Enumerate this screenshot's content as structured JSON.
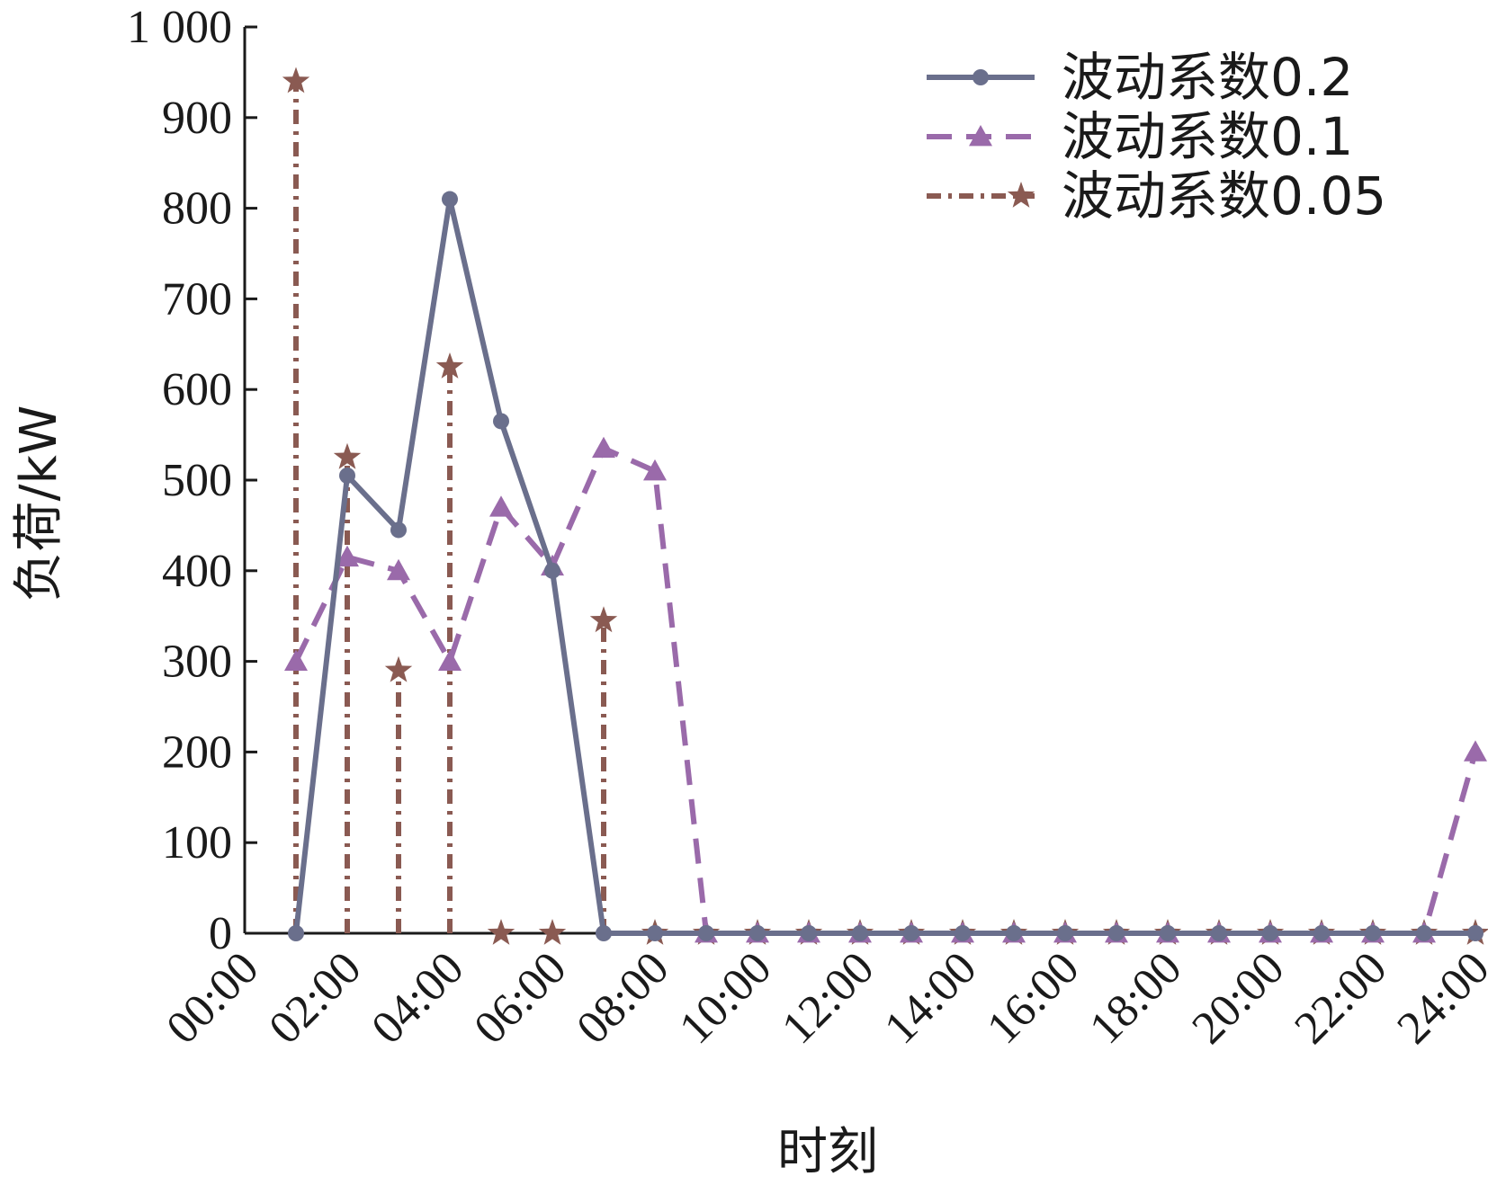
{
  "chart_data": {
    "type": "line",
    "xlabel": "时刻",
    "ylabel": "负荷/kW",
    "ylim": [
      0,
      1000
    ],
    "yticks": [
      0,
      100,
      200,
      300,
      400,
      500,
      600,
      700,
      800,
      900,
      1000
    ],
    "ytick_labels": [
      "0",
      "100",
      "200",
      "300",
      "400",
      "500",
      "600",
      "700",
      "800",
      "900",
      "1 000"
    ],
    "xlim": [
      0,
      24
    ],
    "xtick_labels": [
      "00:00",
      "02:00",
      "04:00",
      "06:00",
      "08:00",
      "10:00",
      "12:00",
      "14:00",
      "16:00",
      "18:00",
      "20:00",
      "22:00",
      "24:00"
    ],
    "grid": false,
    "legend": "top-right",
    "x": [
      1,
      2,
      3,
      4,
      5,
      6,
      7,
      8,
      9,
      10,
      11,
      12,
      13,
      14,
      15,
      16,
      17,
      18,
      19,
      20,
      21,
      22,
      23,
      24
    ],
    "series": [
      {
        "name": "波动系数0.2",
        "color": "#6a6f8c",
        "style": "solid",
        "marker": "circle",
        "values": [
          0,
          505,
          445,
          810,
          565,
          400,
          0,
          0,
          0,
          0,
          0,
          0,
          0,
          0,
          0,
          0,
          0,
          0,
          0,
          0,
          0,
          0,
          0,
          0
        ]
      },
      {
        "name": "波动系数0.1",
        "color": "#9a6aaa",
        "style": "dashed",
        "marker": "triangle",
        "values": [
          300,
          415,
          400,
          300,
          470,
          405,
          535,
          510,
          0,
          0,
          0,
          0,
          0,
          0,
          0,
          0,
          0,
          0,
          0,
          0,
          0,
          0,
          0,
          200
        ]
      },
      {
        "name": "波动系数0.05",
        "color": "#8a5a52",
        "style": "dash-dot stems",
        "marker": "star",
        "values": [
          940,
          525,
          290,
          625,
          0,
          0,
          345,
          0,
          0,
          0,
          0,
          0,
          0,
          0,
          0,
          0,
          0,
          0,
          0,
          0,
          0,
          0,
          0,
          0
        ]
      }
    ]
  }
}
